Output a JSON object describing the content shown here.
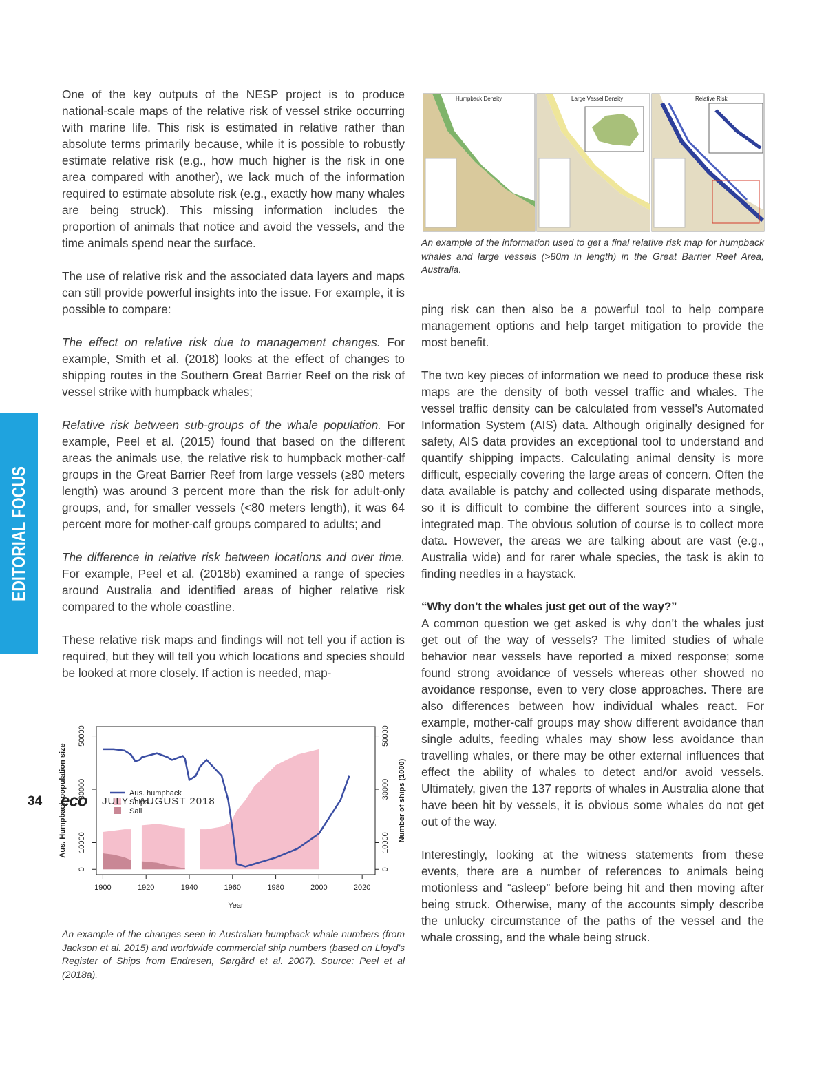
{
  "sidebar": "EDITORIAL FOCUS",
  "left_column": {
    "paragraphs": [
      {
        "text": "One of the key outputs of the NESP project is to produce national-scale maps of the relative risk of vessel strike occurring with marine life. This risk is estimated in relative rather than absolute terms primarily because, while it is possible to robustly estimate relative risk (e.g., how much higher is the risk in one area compared with another), we lack much of the information required to estimate absolute risk (e.g., exactly how many whales are being struck). This missing information includes the proportion of animals that notice and avoid the vessels, and the time animals spend near the surface."
      },
      {
        "text": "The use of relative risk and the associated data layers and maps can still provide powerful insights into the issue. For example, it is possible to compare:"
      },
      {
        "lead": "The effect on relative risk due to management changes.",
        "text": "For example, Smith et al. (2018) looks at the effect of changes to shipping routes in the Southern Great Barrier Reef on the risk of vessel strike with humpback whales;"
      },
      {
        "lead": "Relative risk between sub-groups of the whale population.",
        "text": "For example, Peel et al. (2015) found that based on the different areas the animals use, the relative risk to humpback mother-calf groups in the Great Barrier Reef from large vessels (≥80 meters length) was around 3 percent more than the risk for adult-only groups, and, for smaller vessels (<80 meters length), it was 64 percent more for mother-calf groups compared to adults; and"
      },
      {
        "lead": "The difference in relative risk between locations and over time.",
        "text": "For example, Peel et al. (2018b) examined a range of species around Australia and identified areas of higher relative risk compared to the whole coastline."
      },
      {
        "text": "These relative risk maps and findings will not tell you if action is required, but they will tell you which locations and species should be looked at more closely. If action is needed, map-"
      }
    ]
  },
  "map_figure": {
    "panel_titles": [
      "Humpback Density",
      "Large Vessel Density",
      "Relative Risk"
    ],
    "caption": "An example of the information used to get a final relative risk map for humpback whales and large vessels (>80m in length) in the Great Barrier Reef Area, Australia."
  },
  "chart_figure": {
    "chart_data": {
      "type": "line-area",
      "x_label": "Year",
      "y_label": "Aus. Humpback population size",
      "y2_label": "Number of ships (1000)",
      "x": [
        1900,
        1905,
        1910,
        1913,
        1915,
        1917,
        1918,
        1925,
        1930,
        1932,
        1937,
        1938,
        1940,
        1943,
        1945,
        1948,
        1955,
        1958,
        1960,
        1962,
        1966,
        1970,
        1980,
        1990,
        2000,
        2010,
        2014
      ],
      "series": [
        {
          "name": "Aus. humpback",
          "kind": "line",
          "color": "#3b4ea3",
          "values": [
            45000,
            45000,
            44500,
            43000,
            40500,
            41000,
            42000,
            43500,
            42000,
            41000,
            42500,
            41500,
            33500,
            35000,
            38500,
            41000,
            35000,
            26000,
            15000,
            2000,
            1000,
            2000,
            4400,
            7700,
            13400,
            26000,
            35000
          ]
        },
        {
          "name": "Ships",
          "kind": "area",
          "axis": "y2",
          "color": "#f5bfcc",
          "values": [
            14000,
            14500,
            15000,
            15000,
            null,
            null,
            16500,
            17000,
            16500,
            16000,
            15500,
            15500,
            null,
            null,
            15000,
            15000,
            16000,
            17000,
            19000,
            22000,
            26000,
            31000,
            39000,
            43000,
            45000,
            null,
            null
          ]
        },
        {
          "name": "Sail",
          "kind": "area",
          "axis": "y2",
          "color": "#c98795",
          "values": [
            6000,
            5500,
            4500,
            3500,
            null,
            null,
            3000,
            2500,
            1500,
            1200,
            500,
            400,
            null,
            null,
            null,
            null,
            null,
            null,
            null,
            null,
            null,
            null,
            null,
            null,
            null,
            null,
            null
          ]
        }
      ],
      "xlim": [
        1897,
        2026
      ],
      "xticks": [
        1900,
        1920,
        1940,
        1960,
        1980,
        2000,
        2020
      ],
      "ylim": [
        -2000,
        53500
      ],
      "yticks": [
        0,
        10000,
        30000,
        50000
      ],
      "y2lim": [
        -2000,
        53500
      ],
      "y2ticks": [
        0,
        10000,
        30000,
        50000
      ]
    },
    "caption": "An example of the changes seen in Australian humpback whale numbers (from Jackson et al. 2015) and worldwide commercial ship numbers (based on Lloyd's Register of Ships from Endresen, Sørgård et al. 2007). Source: Peel et al (2018a)."
  },
  "right_column": {
    "paragraphs": [
      {
        "text": "ping risk can then also be a powerful tool to help compare management options and help target mitigation to provide the most benefit."
      },
      {
        "text": "The two key pieces of information we need to produce these risk maps are the density of both vessel traffic and whales. The vessel traffic density can be calculated from vessel’s Automated Information System (AIS) data. Although originally designed for safety, AIS data provides an exceptional tool to understand and quantify shipping impacts. Calculating animal density is more difficult, especially covering the large areas of concern. Often the data available is patchy and collected using disparate methods, so it is difficult to combine the different sources into a single, integrated map. The obvious solution of course is to collect more data. However, the areas we are talking about are vast (e.g., Australia wide) and for rarer whale species, the task is akin to finding needles in a haystack."
      }
    ],
    "heading": "“Why don’t the whales just get out of the way?”",
    "paragraphs_after": [
      {
        "text": "A common question we get asked is why don’t the whales just get out of the way of vessels? The limited studies of whale behavior near vessels have reported a mixed response; some found strong avoidance of vessels whereas other showed no avoidance response, even to very close approaches. There are also differences between how individual whales react. For example, mother-calf groups may show different avoidance than single adults, feeding whales may show less avoidance than travelling whales, or there may be other external influences that effect the ability of whales to detect and/or avoid vessels. Ultimately, given the 137 reports of whales in Australia alone that have been hit by vessels, it is obvious some whales do not get out of the way."
      },
      {
        "text": "Interestingly, looking at the witness statements from these events, there are a number of references to animals being motionless and “asleep” before being hit and then moving after being struck. Otherwise, many of the accounts simply describe the unlucky circumstance of the paths of the vessel and the whale crossing, and the whale being struck."
      }
    ]
  },
  "footer": {
    "page_number": "34",
    "logo": "eco",
    "issue": "JULY / AUGUST 2018"
  }
}
